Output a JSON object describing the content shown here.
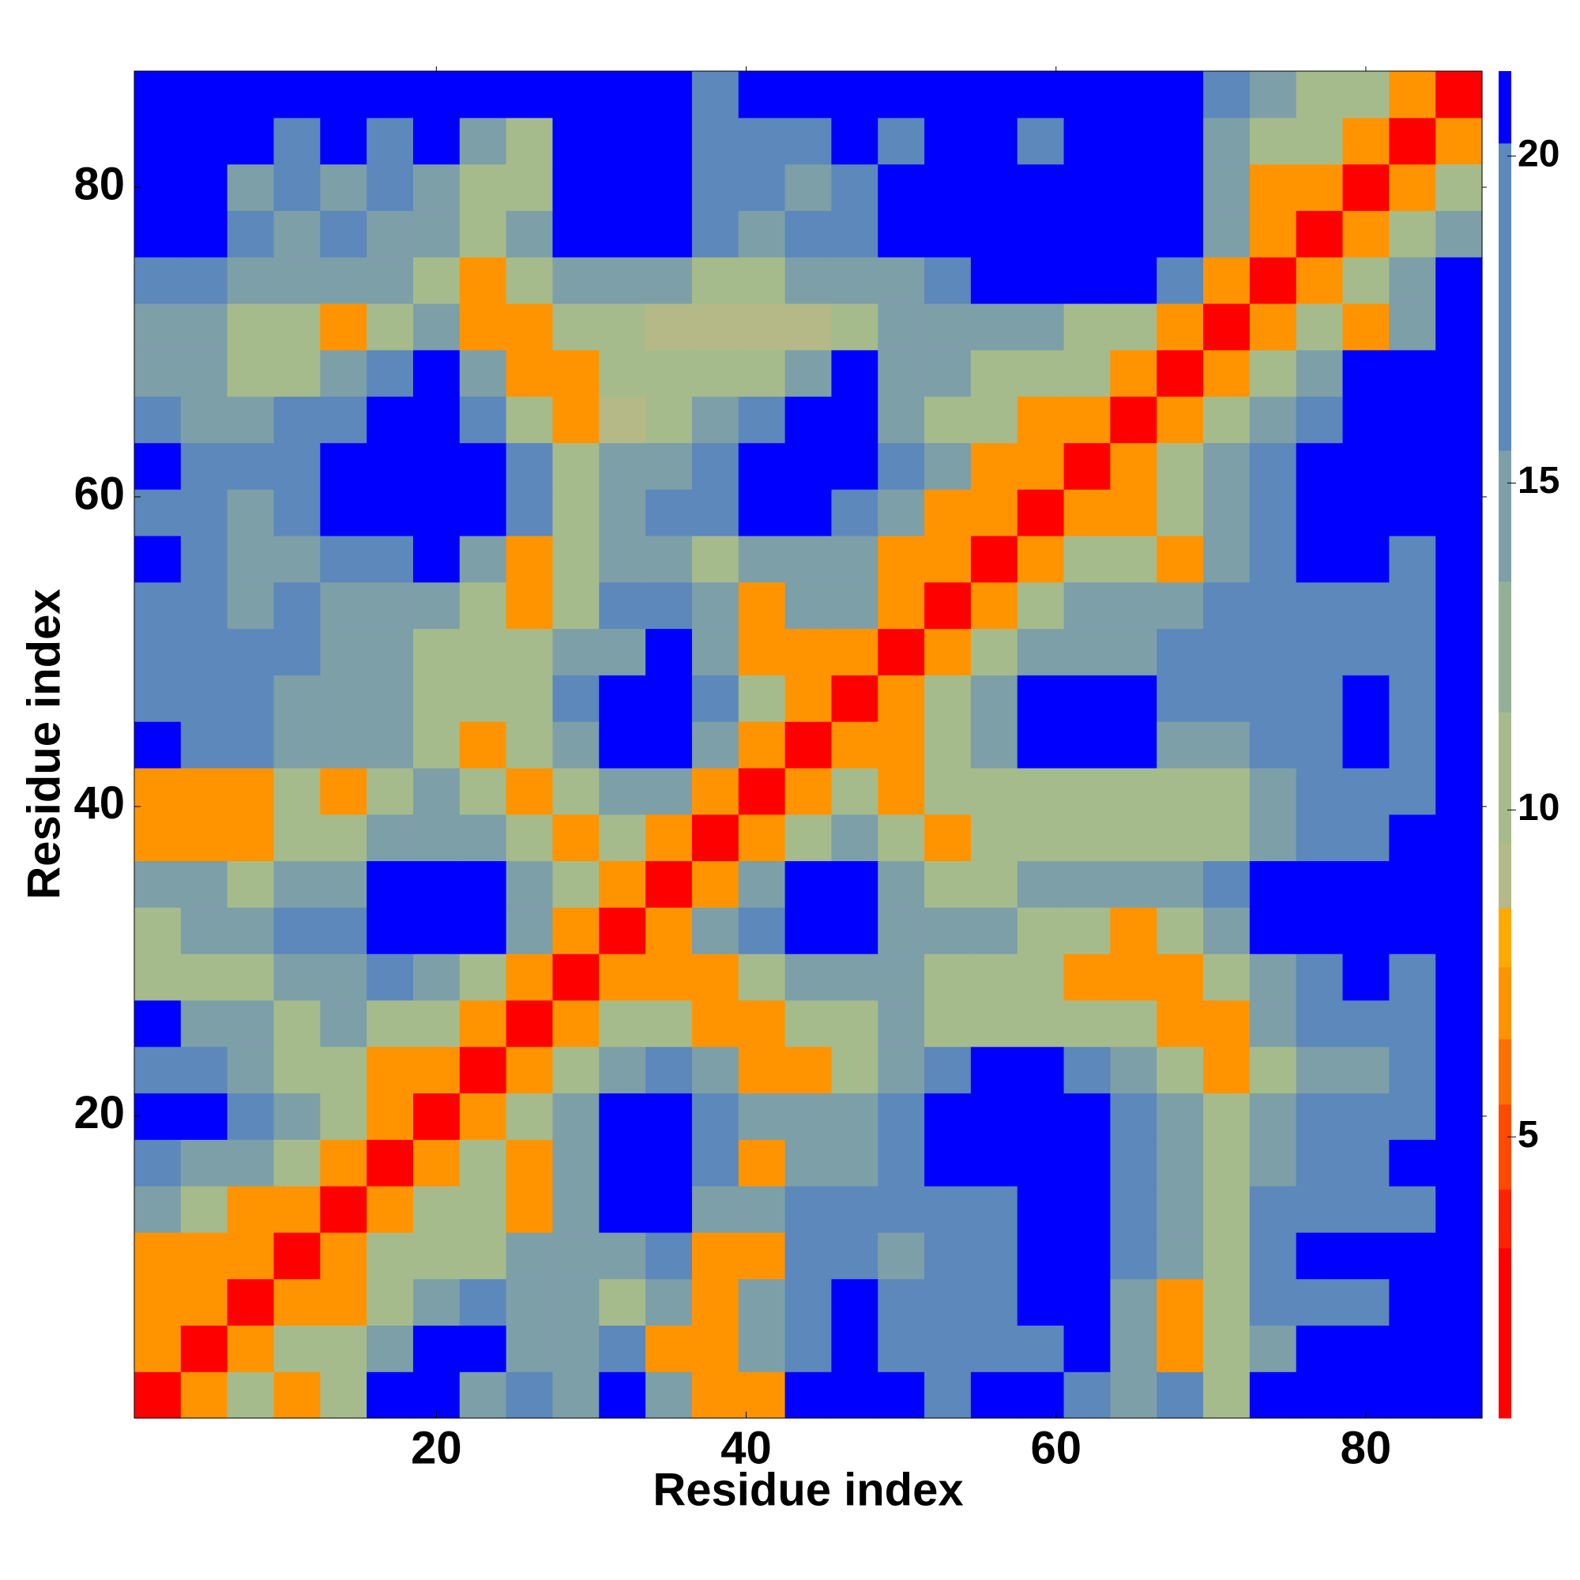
{
  "chart_data": {
    "type": "heatmap",
    "xlabel": "Residue index",
    "ylabel": "Residue index",
    "xlim": [
      0.5,
      87.5
    ],
    "ylim": [
      0.5,
      87.5
    ],
    "xticks": [
      20,
      40,
      60,
      80
    ],
    "yticks": [
      20,
      40,
      60,
      80
    ],
    "colorbar_lim": [
      0.7,
      21.3
    ],
    "colorbar_ticks": [
      5,
      10,
      15,
      20
    ],
    "color_levels": [
      {
        "from": 0.7,
        "to": 3.3,
        "color": "#ff0000"
      },
      {
        "from": 3.3,
        "to": 4.2,
        "color": "#ff2200"
      },
      {
        "from": 4.2,
        "to": 5.5,
        "color": "#ff4a00"
      },
      {
        "from": 5.5,
        "to": 6.5,
        "color": "#ff7000"
      },
      {
        "from": 6.5,
        "to": 7.6,
        "color": "#ff9400"
      },
      {
        "from": 7.6,
        "to": 8.5,
        "color": "#ffaa00"
      },
      {
        "from": 8.5,
        "to": 9.5,
        "color": "#b5b887"
      },
      {
        "from": 9.5,
        "to": 11.5,
        "color": "#a6bb8c"
      },
      {
        "from": 11.5,
        "to": 13.5,
        "color": "#93b096"
      },
      {
        "from": 13.5,
        "to": 15.5,
        "color": "#7d9fa8"
      },
      {
        "from": 15.5,
        "to": 20.2,
        "color": "#5c88bb"
      },
      {
        "from": 20.2,
        "to": 21.3,
        "color": "#0000ff"
      }
    ],
    "x": [
      2,
      5,
      8,
      11,
      14,
      17,
      20,
      23,
      26,
      29,
      32,
      35,
      38,
      41,
      44,
      47,
      50,
      53,
      56,
      59,
      62,
      65,
      68,
      71,
      74,
      77,
      80,
      83,
      86
    ],
    "y": [
      2,
      5,
      8,
      11,
      14,
      17,
      20,
      23,
      26,
      29,
      32,
      35,
      38,
      41,
      44,
      47,
      50,
      53,
      56,
      59,
      62,
      65,
      68,
      71,
      74,
      77,
      80,
      83,
      86
    ],
    "values": [
      [
        2,
        7,
        11,
        7,
        11,
        21,
        21,
        14.5,
        17.5,
        14.5,
        21,
        14.5,
        7,
        7,
        21,
        21,
        21,
        17.5,
        21,
        21,
        17.5,
        14.5,
        17.5,
        11,
        21,
        21,
        21,
        21,
        21
      ],
      [
        7,
        2,
        7,
        11,
        11,
        14.5,
        21,
        21,
        14.5,
        14.5,
        17.5,
        7,
        7,
        14.5,
        17.5,
        21,
        17.5,
        17.5,
        17.5,
        17.5,
        21,
        14.5,
        7,
        11,
        14.5,
        21,
        21,
        21,
        21
      ],
      [
        7,
        7,
        2,
        7,
        7,
        11,
        14.5,
        17.5,
        14.5,
        14.5,
        11,
        14.5,
        7,
        14.5,
        17.5,
        21,
        17.5,
        17.5,
        17.5,
        21,
        21,
        14.5,
        7,
        11,
        17.5,
        17.5,
        17.5,
        21,
        21
      ],
      [
        7,
        7,
        7,
        2,
        7,
        11,
        11,
        11,
        14.5,
        14.5,
        14.5,
        17.5,
        7,
        7,
        17.5,
        17.5,
        14.5,
        17.5,
        17.5,
        21,
        21,
        17.5,
        14.5,
        11,
        17.5,
        21,
        21,
        21,
        21
      ],
      [
        14.5,
        11,
        7,
        7,
        2,
        7,
        11,
        11,
        7,
        14.5,
        21,
        21,
        14.5,
        14.5,
        17.5,
        17.5,
        17.5,
        17.5,
        17.5,
        21,
        21,
        17.5,
        14.5,
        11,
        17.5,
        17.5,
        17.5,
        17.5,
        21
      ],
      [
        17.5,
        14.5,
        14.5,
        11,
        7,
        2,
        7,
        11,
        7,
        14.5,
        21,
        21,
        17.5,
        7,
        14.5,
        14.5,
        17.5,
        21,
        21,
        21,
        21,
        17.5,
        14.5,
        11,
        14.5,
        17.5,
        17.5,
        21,
        21
      ],
      [
        21,
        21,
        17.5,
        14.5,
        11,
        7,
        2,
        7,
        11,
        14.5,
        21,
        21,
        17.5,
        14.5,
        14.5,
        14.5,
        17.5,
        21,
        21,
        21,
        21,
        17.5,
        14.5,
        11,
        14.5,
        17.5,
        17.5,
        17.5,
        21
      ],
      [
        17.5,
        17.5,
        14.5,
        11,
        11,
        7,
        7,
        2,
        7,
        11,
        14.5,
        17.5,
        14.5,
        7,
        7,
        11,
        14.5,
        17.5,
        21,
        21,
        17.5,
        14.5,
        11,
        7,
        11,
        14.5,
        14.5,
        17.5,
        21
      ],
      [
        21,
        14.5,
        14.5,
        11,
        14.5,
        11,
        11,
        7,
        2,
        7,
        11,
        11,
        7,
        7,
        11,
        11,
        14.5,
        11,
        11,
        11,
        11,
        11,
        7,
        7,
        14.5,
        17.5,
        17.5,
        17.5,
        21
      ],
      [
        11,
        11,
        11,
        14.5,
        14.5,
        17.5,
        14.5,
        11,
        7,
        2,
        7,
        7,
        7,
        11,
        14.5,
        14.5,
        14.5,
        11,
        11,
        11,
        7,
        7,
        7,
        11,
        14.5,
        17.5,
        21,
        17.5,
        21
      ],
      [
        11,
        14.5,
        14.5,
        17.5,
        17.5,
        21,
        21,
        21,
        14.5,
        7,
        2,
        7,
        14.5,
        17.5,
        21,
        21,
        14.5,
        14.5,
        14.5,
        11,
        11,
        7,
        11,
        14.5,
        21,
        21,
        21,
        21,
        21
      ],
      [
        14.5,
        14.5,
        11,
        14.5,
        14.5,
        21,
        21,
        21,
        14.5,
        11,
        7,
        2,
        7,
        14.5,
        21,
        21,
        14.5,
        11,
        11,
        14.5,
        14.5,
        14.5,
        14.5,
        17.5,
        21,
        21,
        21,
        21,
        21
      ],
      [
        7,
        7,
        7,
        11,
        11,
        14.5,
        14.5,
        14.5,
        11,
        7,
        11,
        7,
        2,
        7,
        11,
        14.5,
        11,
        7,
        11,
        11,
        11,
        11,
        11,
        11,
        14.5,
        17.5,
        17.5,
        21,
        21
      ],
      [
        7,
        7,
        7,
        11,
        7,
        11,
        14.5,
        11,
        7,
        11,
        14.5,
        14.5,
        7,
        2,
        7,
        11,
        7,
        11,
        11,
        11,
        11,
        11,
        11,
        11,
        14.5,
        17.5,
        17.5,
        17.5,
        21
      ],
      [
        21,
        17.5,
        17.5,
        14.5,
        14.5,
        14.5,
        11,
        7,
        11,
        14.5,
        21,
        21,
        14.5,
        7,
        2,
        7,
        7,
        11,
        14.5,
        21,
        21,
        21,
        14.5,
        14.5,
        17.5,
        17.5,
        21,
        17.5,
        21
      ],
      [
        17.5,
        17.5,
        17.5,
        14.5,
        14.5,
        14.5,
        11,
        11,
        11,
        17.5,
        21,
        21,
        17.5,
        11,
        7,
        2,
        7,
        11,
        14.5,
        21,
        21,
        21,
        17.5,
        17.5,
        17.5,
        17.5,
        21,
        17.5,
        21
      ],
      [
        17.5,
        17.5,
        17.5,
        17.5,
        14.5,
        14.5,
        11,
        11,
        11,
        14.5,
        14.5,
        21,
        14.5,
        7,
        7,
        7,
        2,
        7,
        11,
        14.5,
        14.5,
        14.5,
        17.5,
        17.5,
        17.5,
        17.5,
        17.5,
        17.5,
        21
      ],
      [
        17.5,
        17.5,
        14.5,
        17.5,
        14.5,
        14.5,
        14.5,
        11,
        7,
        11,
        17.5,
        17.5,
        14.5,
        7,
        14.5,
        14.5,
        7,
        2,
        7,
        11,
        14.5,
        14.5,
        14.5,
        17.5,
        17.5,
        17.5,
        17.5,
        17.5,
        21
      ],
      [
        21,
        17.5,
        14.5,
        14.5,
        17.5,
        17.5,
        21,
        14.5,
        7,
        11,
        14.5,
        14.5,
        11,
        14.5,
        14.5,
        14.5,
        7,
        7,
        2,
        7,
        11,
        11,
        7,
        14.5,
        17.5,
        21,
        21,
        17.5,
        21
      ],
      [
        17.5,
        17.5,
        14.5,
        17.5,
        21,
        21,
        21,
        21,
        17.5,
        11,
        14.5,
        17.5,
        17.5,
        21,
        21,
        17.5,
        14.5,
        7,
        7,
        2,
        7,
        7,
        11,
        14.5,
        17.5,
        21,
        21,
        21,
        21
      ],
      [
        21,
        17.5,
        17.5,
        17.5,
        21,
        21,
        21,
        21,
        17.5,
        11,
        14.5,
        14.5,
        17.5,
        21,
        21,
        21,
        17.5,
        14.5,
        7,
        7,
        2,
        7,
        11,
        14.5,
        17.5,
        21,
        21,
        21,
        21
      ],
      [
        17.5,
        14.5,
        14.5,
        17.5,
        17.5,
        21,
        21,
        17.5,
        11,
        7,
        9,
        11,
        14.5,
        17.5,
        21,
        21,
        14.5,
        11,
        11,
        7,
        7,
        2,
        7,
        11,
        14.5,
        17.5,
        21,
        21,
        21
      ],
      [
        14.5,
        14.5,
        11,
        11,
        14.5,
        17.5,
        21,
        14.5,
        7,
        7,
        11,
        11,
        11,
        11,
        14.5,
        21,
        14.5,
        14.5,
        11,
        11,
        11,
        7,
        2,
        7,
        11,
        14.5,
        21,
        21,
        21
      ],
      [
        14.5,
        14.5,
        11,
        11,
        7,
        11,
        14.5,
        7,
        7,
        11,
        11,
        9,
        9,
        9,
        9,
        11,
        14.5,
        14.5,
        14.5,
        14.5,
        11,
        11,
        7,
        2,
        7,
        11,
        7,
        14.5,
        21
      ],
      [
        17.5,
        17.5,
        14.5,
        14.5,
        14.5,
        14.5,
        11,
        7,
        11,
        14.5,
        14.5,
        14.5,
        11,
        11,
        14.5,
        14.5,
        14.5,
        17.5,
        21,
        21,
        21,
        21,
        17.5,
        7,
        2,
        7,
        11,
        14.5,
        21
      ],
      [
        21,
        21,
        17.5,
        14.5,
        17.5,
        14.5,
        14.5,
        11,
        14.5,
        21,
        21,
        21,
        17.5,
        14.5,
        17.5,
        17.5,
        21,
        21,
        21,
        21,
        21,
        21,
        21,
        14.5,
        7,
        2,
        7,
        11,
        14.5
      ],
      [
        21,
        21,
        14.5,
        17.5,
        14.5,
        17.5,
        14.5,
        11,
        11,
        21,
        21,
        21,
        17.5,
        17.5,
        14.5,
        17.5,
        21,
        21,
        21,
        21,
        21,
        21,
        21,
        14.5,
        7,
        7,
        2,
        7,
        11
      ],
      [
        21,
        21,
        21,
        17.5,
        21,
        17.5,
        21,
        14.5,
        11,
        21,
        21,
        21,
        17.5,
        17.5,
        17.5,
        21,
        17.5,
        21,
        21,
        17.5,
        21,
        21,
        21,
        14.5,
        11,
        11,
        7,
        2,
        7
      ],
      [
        21,
        21,
        21,
        21,
        21,
        21,
        21,
        21,
        21,
        21,
        21,
        21,
        17.5,
        21,
        21,
        21,
        21,
        21,
        21,
        21,
        21,
        21,
        21,
        17.5,
        14.5,
        11,
        11,
        7,
        2
      ]
    ]
  }
}
